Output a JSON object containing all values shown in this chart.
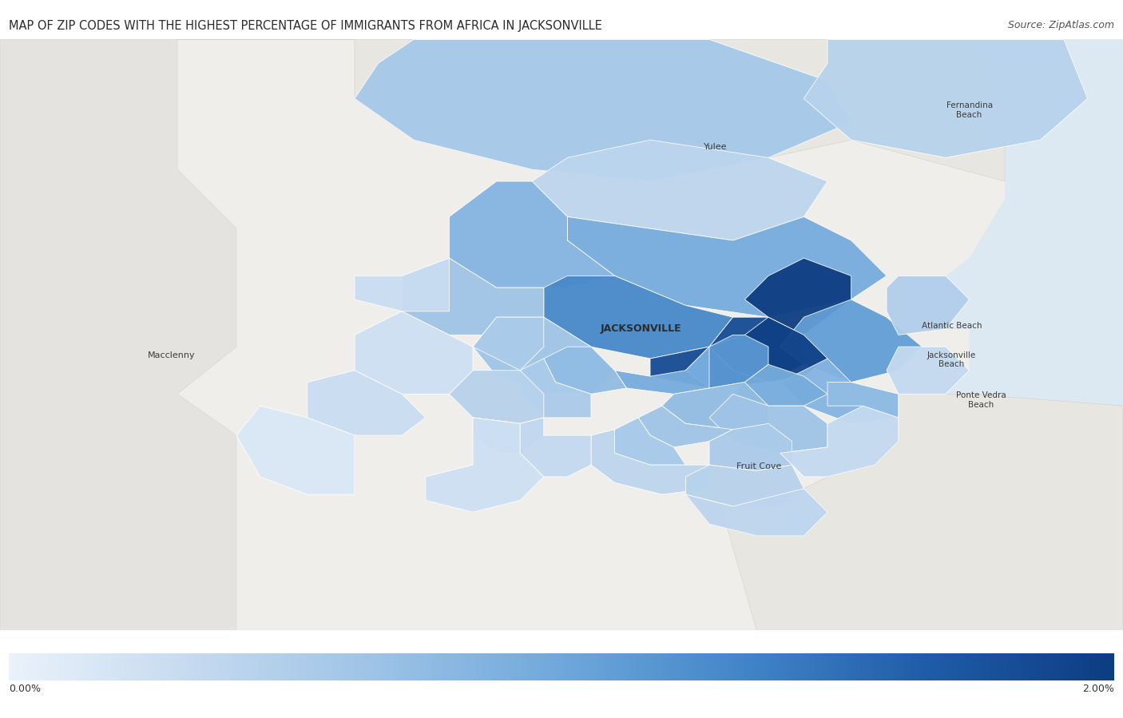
{
  "title": "MAP OF ZIP CODES WITH THE HIGHEST PERCENTAGE OF IMMIGRANTS FROM AFRICA IN JACKSONVILLE",
  "source": "Source: ZipAtlas.com",
  "colorbar_min": 0.0,
  "colorbar_max": 2.0,
  "colorbar_label_min": "0.00%",
  "colorbar_label_max": "2.00%",
  "title_fontsize": 10.5,
  "source_fontsize": 9,
  "background_color": "#ffffff",
  "map_bg_color": "#f0eeea",
  "surrounding_color": "#e8e6e2",
  "ocean_color": "#dce8f0",
  "figsize": [
    14.06,
    8.99
  ],
  "dpi": 100,
  "lon_min": -82.2,
  "lon_max": -81.25,
  "lat_min": 29.82,
  "lat_max": 30.82,
  "cmap_colors": [
    "#eaf2fb",
    "#c5daf0",
    "#9dc3e6",
    "#6fa8dc",
    "#4285c8",
    "#1f5ca8",
    "#0d3d82"
  ],
  "zip_data": {
    "32218": {
      "pct": 0.85,
      "label": ""
    },
    "32208": {
      "pct": 1.3,
      "label": ""
    },
    "32209": {
      "pct": 0.65,
      "label": ""
    },
    "32206": {
      "pct": 1.85,
      "label": ""
    },
    "32254": {
      "pct": 0.55,
      "label": ""
    },
    "32210": {
      "pct": 0.45,
      "label": ""
    },
    "32220": {
      "pct": 0.3,
      "label": ""
    },
    "32221": {
      "pct": 0.25,
      "label": ""
    },
    "32222": {
      "pct": 0.3,
      "label": ""
    },
    "32223": {
      "pct": 0.4,
      "label": ""
    },
    "32224": {
      "pct": 0.75,
      "label": ""
    },
    "32225": {
      "pct": 1.1,
      "label": ""
    },
    "32226": {
      "pct": 0.95,
      "label": ""
    },
    "32233": {
      "pct": 0.5,
      "label": ""
    },
    "32250": {
      "pct": 0.35,
      "label": ""
    },
    "32256": {
      "pct": 0.65,
      "label": ""
    },
    "32257": {
      "pct": 0.55,
      "label": ""
    },
    "32258": {
      "pct": 0.45,
      "label": ""
    },
    "32259": {
      "pct": 0.35,
      "label": ""
    },
    "32244": {
      "pct": 0.5,
      "label": ""
    },
    "32246": {
      "pct": 0.85,
      "label": ""
    },
    "32277": {
      "pct": 2.0,
      "label": ""
    },
    "32211": {
      "pct": 1.95,
      "label": ""
    },
    "32202": {
      "pct": 0.95,
      "label": ""
    },
    "32204": {
      "pct": 0.75,
      "label": ""
    },
    "32205": {
      "pct": 0.55,
      "label": ""
    },
    "32207": {
      "pct": 1.15,
      "label": ""
    },
    "32216": {
      "pct": 0.95,
      "label": ""
    },
    "32217": {
      "pct": 0.75,
      "label": ""
    },
    "32219": {
      "pct": 0.65,
      "label": ""
    },
    "32234": {
      "pct": 0.15,
      "label": ""
    },
    "32065": {
      "pct": 0.25,
      "label": ""
    },
    "32073": {
      "pct": 0.35,
      "label": ""
    },
    "32095": {
      "pct": 0.4,
      "label": ""
    },
    "32097": {
      "pct": 0.6,
      "label": ""
    },
    "32034": {
      "pct": 0.45,
      "label": ""
    },
    "32011": {
      "pct": 0.4,
      "label": ""
    },
    "32212": {
      "pct": 0.65,
      "label": ""
    },
    "32214": {
      "pct": 0.6,
      "label": ""
    }
  },
  "city_labels": [
    {
      "name": "Yulee",
      "lon": -81.595,
      "lat": 30.638,
      "fs": 8
    },
    {
      "name": "Fernandina\nBeach",
      "lon": -81.38,
      "lat": 30.7,
      "fs": 7.5
    },
    {
      "name": "Macclenny",
      "lon": -82.055,
      "lat": 30.285,
      "fs": 8
    },
    {
      "name": "Atlantic Beach",
      "lon": -81.395,
      "lat": 30.335,
      "fs": 7.5
    },
    {
      "name": "Jacksonville\nBeach",
      "lon": -81.395,
      "lat": 30.278,
      "fs": 7.5
    },
    {
      "name": "Ponte Vedra\nBeach",
      "lon": -81.37,
      "lat": 30.21,
      "fs": 7.5
    },
    {
      "name": "Fruit Cove",
      "lon": -81.558,
      "lat": 30.098,
      "fs": 8
    }
  ],
  "jacksonville_label": {
    "name": "JACKSONVILLE",
    "lon": -81.658,
    "lat": 30.33,
    "fs": 9
  }
}
